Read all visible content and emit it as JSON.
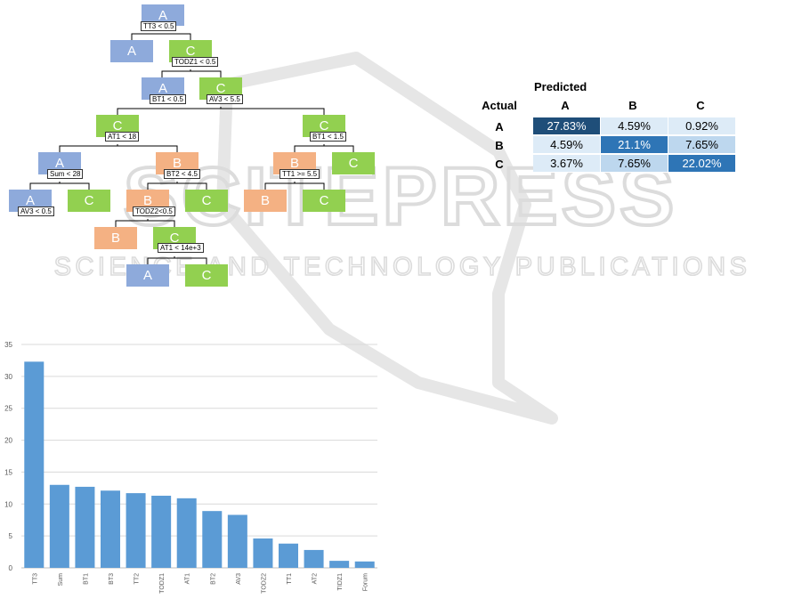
{
  "watermark": {
    "brand": "SCITEPRESS",
    "tagline": "SCIENCE AND TECHNOLOGY PUBLICATIONS"
  },
  "tree": {
    "nodes": [
      {
        "id": "n1",
        "label": "A",
        "cls": "A",
        "cond": "TT3 < 0.5"
      },
      {
        "id": "n2",
        "label": "A",
        "cls": "A"
      },
      {
        "id": "n3",
        "label": "C",
        "cls": "C",
        "cond": "TODZ1 < 0.5"
      },
      {
        "id": "n4",
        "label": "A",
        "cls": "A",
        "cond": "BT1 < 0.5"
      },
      {
        "id": "n5",
        "label": "C",
        "cls": "C",
        "cond": "AV3 < 5.5"
      },
      {
        "id": "n6",
        "label": "C",
        "cls": "C",
        "cond": "AT1 < 18"
      },
      {
        "id": "n7",
        "label": "C",
        "cls": "C",
        "cond": "BT1 < 1.5"
      },
      {
        "id": "n8",
        "label": "A",
        "cls": "A",
        "cond": "Sum < 28"
      },
      {
        "id": "n9",
        "label": "B",
        "cls": "B",
        "cond": "BT2 < 4.5"
      },
      {
        "id": "n10",
        "label": "B",
        "cls": "B",
        "cond": "TT1 >= 5.5"
      },
      {
        "id": "n11",
        "label": "C",
        "cls": "C"
      },
      {
        "id": "n12",
        "label": "A",
        "cls": "A",
        "cond": "AV3 < 0.5"
      },
      {
        "id": "n13",
        "label": "C",
        "cls": "C"
      },
      {
        "id": "n14",
        "label": "B",
        "cls": "B",
        "cond": "TODZ2<0.5"
      },
      {
        "id": "n15",
        "label": "C",
        "cls": "C"
      },
      {
        "id": "n16",
        "label": "B",
        "cls": "B"
      },
      {
        "id": "n17",
        "label": "C",
        "cls": "C"
      },
      {
        "id": "n18",
        "label": "B",
        "cls": "B"
      },
      {
        "id": "n19",
        "label": "C",
        "cls": "C",
        "cond": "AT1 < 14e+3"
      },
      {
        "id": "n20",
        "label": "A",
        "cls": "A"
      },
      {
        "id": "n21",
        "label": "C",
        "cls": "C"
      }
    ]
  },
  "confusion_matrix": {
    "title": "Predicted",
    "row_title": "Actual",
    "columns": [
      "A",
      "B",
      "C"
    ],
    "rows": [
      {
        "label": "A",
        "cells": [
          "27.83%",
          "4.59%",
          "0.92%"
        ],
        "intensity": [
          3,
          0,
          0
        ]
      },
      {
        "label": "B",
        "cells": [
          "4.59%",
          "21.1%",
          "7.65%"
        ],
        "intensity": [
          0,
          2,
          1
        ]
      },
      {
        "label": "C",
        "cells": [
          "3.67%",
          "7.65%",
          "22.02%"
        ],
        "intensity": [
          0,
          1,
          2
        ]
      }
    ],
    "palette": [
      "#ddebf7",
      "#bdd7ee",
      "#2e75b6",
      "#1f4e79"
    ]
  },
  "chart_data": {
    "type": "bar",
    "categories": [
      "TT3",
      "Sum",
      "BT1",
      "BT3",
      "TT2",
      "TODZ1",
      "AT1",
      "BT2",
      "AV3",
      "TODZ2",
      "TT1",
      "AT2",
      "TIDZ1",
      "Forum"
    ],
    "values": [
      32.3,
      13.0,
      12.7,
      12.1,
      11.7,
      11.3,
      10.9,
      8.9,
      8.3,
      4.6,
      3.8,
      2.8,
      1.1,
      1.0
    ],
    "ylim": [
      0,
      35
    ],
    "yticks": [
      0,
      5,
      10,
      15,
      20,
      25,
      30,
      35
    ],
    "title": "",
    "xlabel": "",
    "ylabel": "",
    "grid": true,
    "bar_color": "#5b9bd5"
  }
}
